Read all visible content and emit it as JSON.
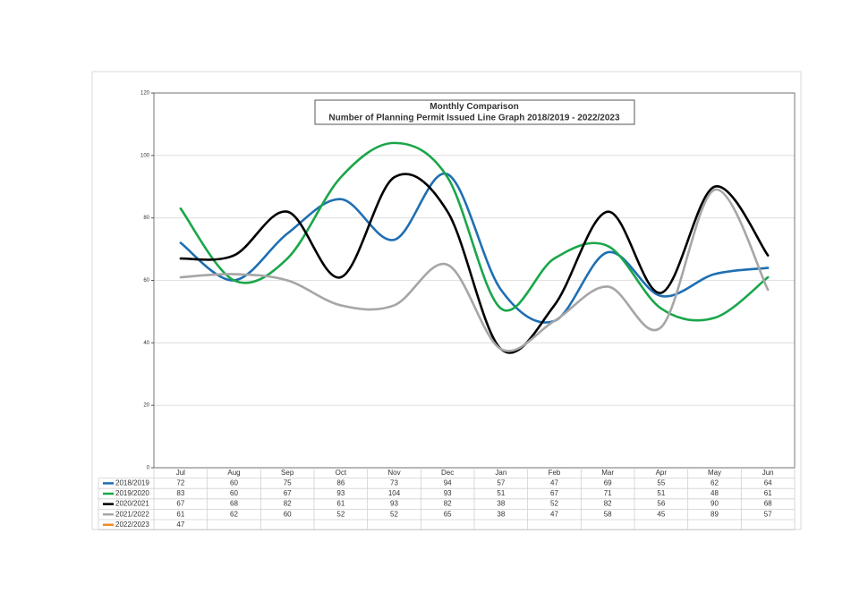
{
  "chart_data": {
    "type": "line",
    "title": "Monthly Comparison",
    "subtitle": "Number of Planning Permit Issued Line Graph 2018/2019 - 2022/2023",
    "categories": [
      "Jul",
      "Aug",
      "Sep",
      "Oct",
      "Nov",
      "Dec",
      "Jan",
      "Feb",
      "Mar",
      "Apr",
      "May",
      "Jun"
    ],
    "series": [
      {
        "name": "2018/2019",
        "color": "#1f6fb2",
        "values": [
          72,
          60,
          75,
          86,
          73,
          94,
          57,
          47,
          69,
          55,
          62,
          64
        ]
      },
      {
        "name": "2019/2020",
        "color": "#1aa64a",
        "values": [
          83,
          60,
          67,
          93,
          104,
          93,
          51,
          67,
          71,
          51,
          48,
          61
        ]
      },
      {
        "name": "2020/2021",
        "color": "#000000",
        "values": [
          67,
          68,
          82,
          61,
          93,
          82,
          38,
          52,
          82,
          56,
          90,
          68
        ]
      },
      {
        "name": "2021/2022",
        "color": "#a6a6a6",
        "values": [
          61,
          62,
          60,
          52,
          52,
          65,
          38,
          47,
          58,
          45,
          89,
          57
        ]
      },
      {
        "name": "2022/2023",
        "color": "#f08a24",
        "values": [
          47,
          null,
          null,
          null,
          null,
          null,
          null,
          null,
          null,
          null,
          null,
          null
        ]
      }
    ],
    "ylim": [
      0,
      120
    ],
    "yticks": [
      0,
      20,
      40,
      60,
      80,
      100,
      120
    ],
    "grid": true,
    "smooth": true
  }
}
